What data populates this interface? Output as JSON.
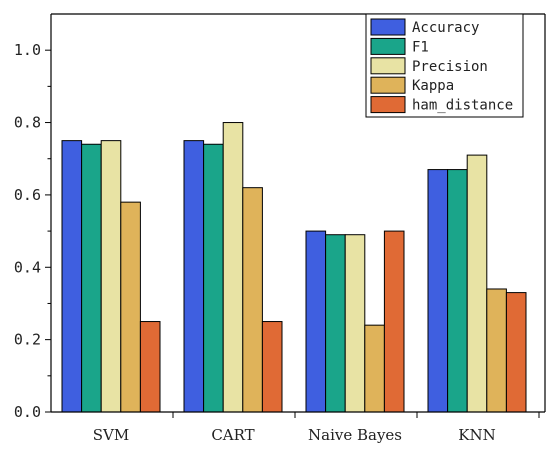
{
  "chart_data": {
    "type": "bar",
    "categories": [
      "SVM",
      "CART",
      "Naive Bayes",
      "KNN"
    ],
    "series": [
      {
        "name": "Accuracy",
        "color": "#3f5fe0",
        "values": [
          0.75,
          0.75,
          0.5,
          0.67
        ]
      },
      {
        "name": "F1",
        "color": "#1aa58a",
        "values": [
          0.74,
          0.74,
          0.49,
          0.67
        ]
      },
      {
        "name": "Precision",
        "color": "#e8e3a4",
        "values": [
          0.75,
          0.8,
          0.49,
          0.71
        ]
      },
      {
        "name": "Kappa",
        "color": "#dfb35a",
        "values": [
          0.58,
          0.62,
          0.24,
          0.34
        ]
      },
      {
        "name": "ham_distance",
        "color": "#e06a35",
        "values": [
          0.25,
          0.25,
          0.5,
          0.33
        ]
      }
    ],
    "yticks": [
      "0.0",
      "0.2",
      "0.4",
      "0.6",
      "0.8",
      "1.0"
    ],
    "ylim": [
      0,
      1.1
    ],
    "legend_position": "top-right",
    "grid": false
  }
}
